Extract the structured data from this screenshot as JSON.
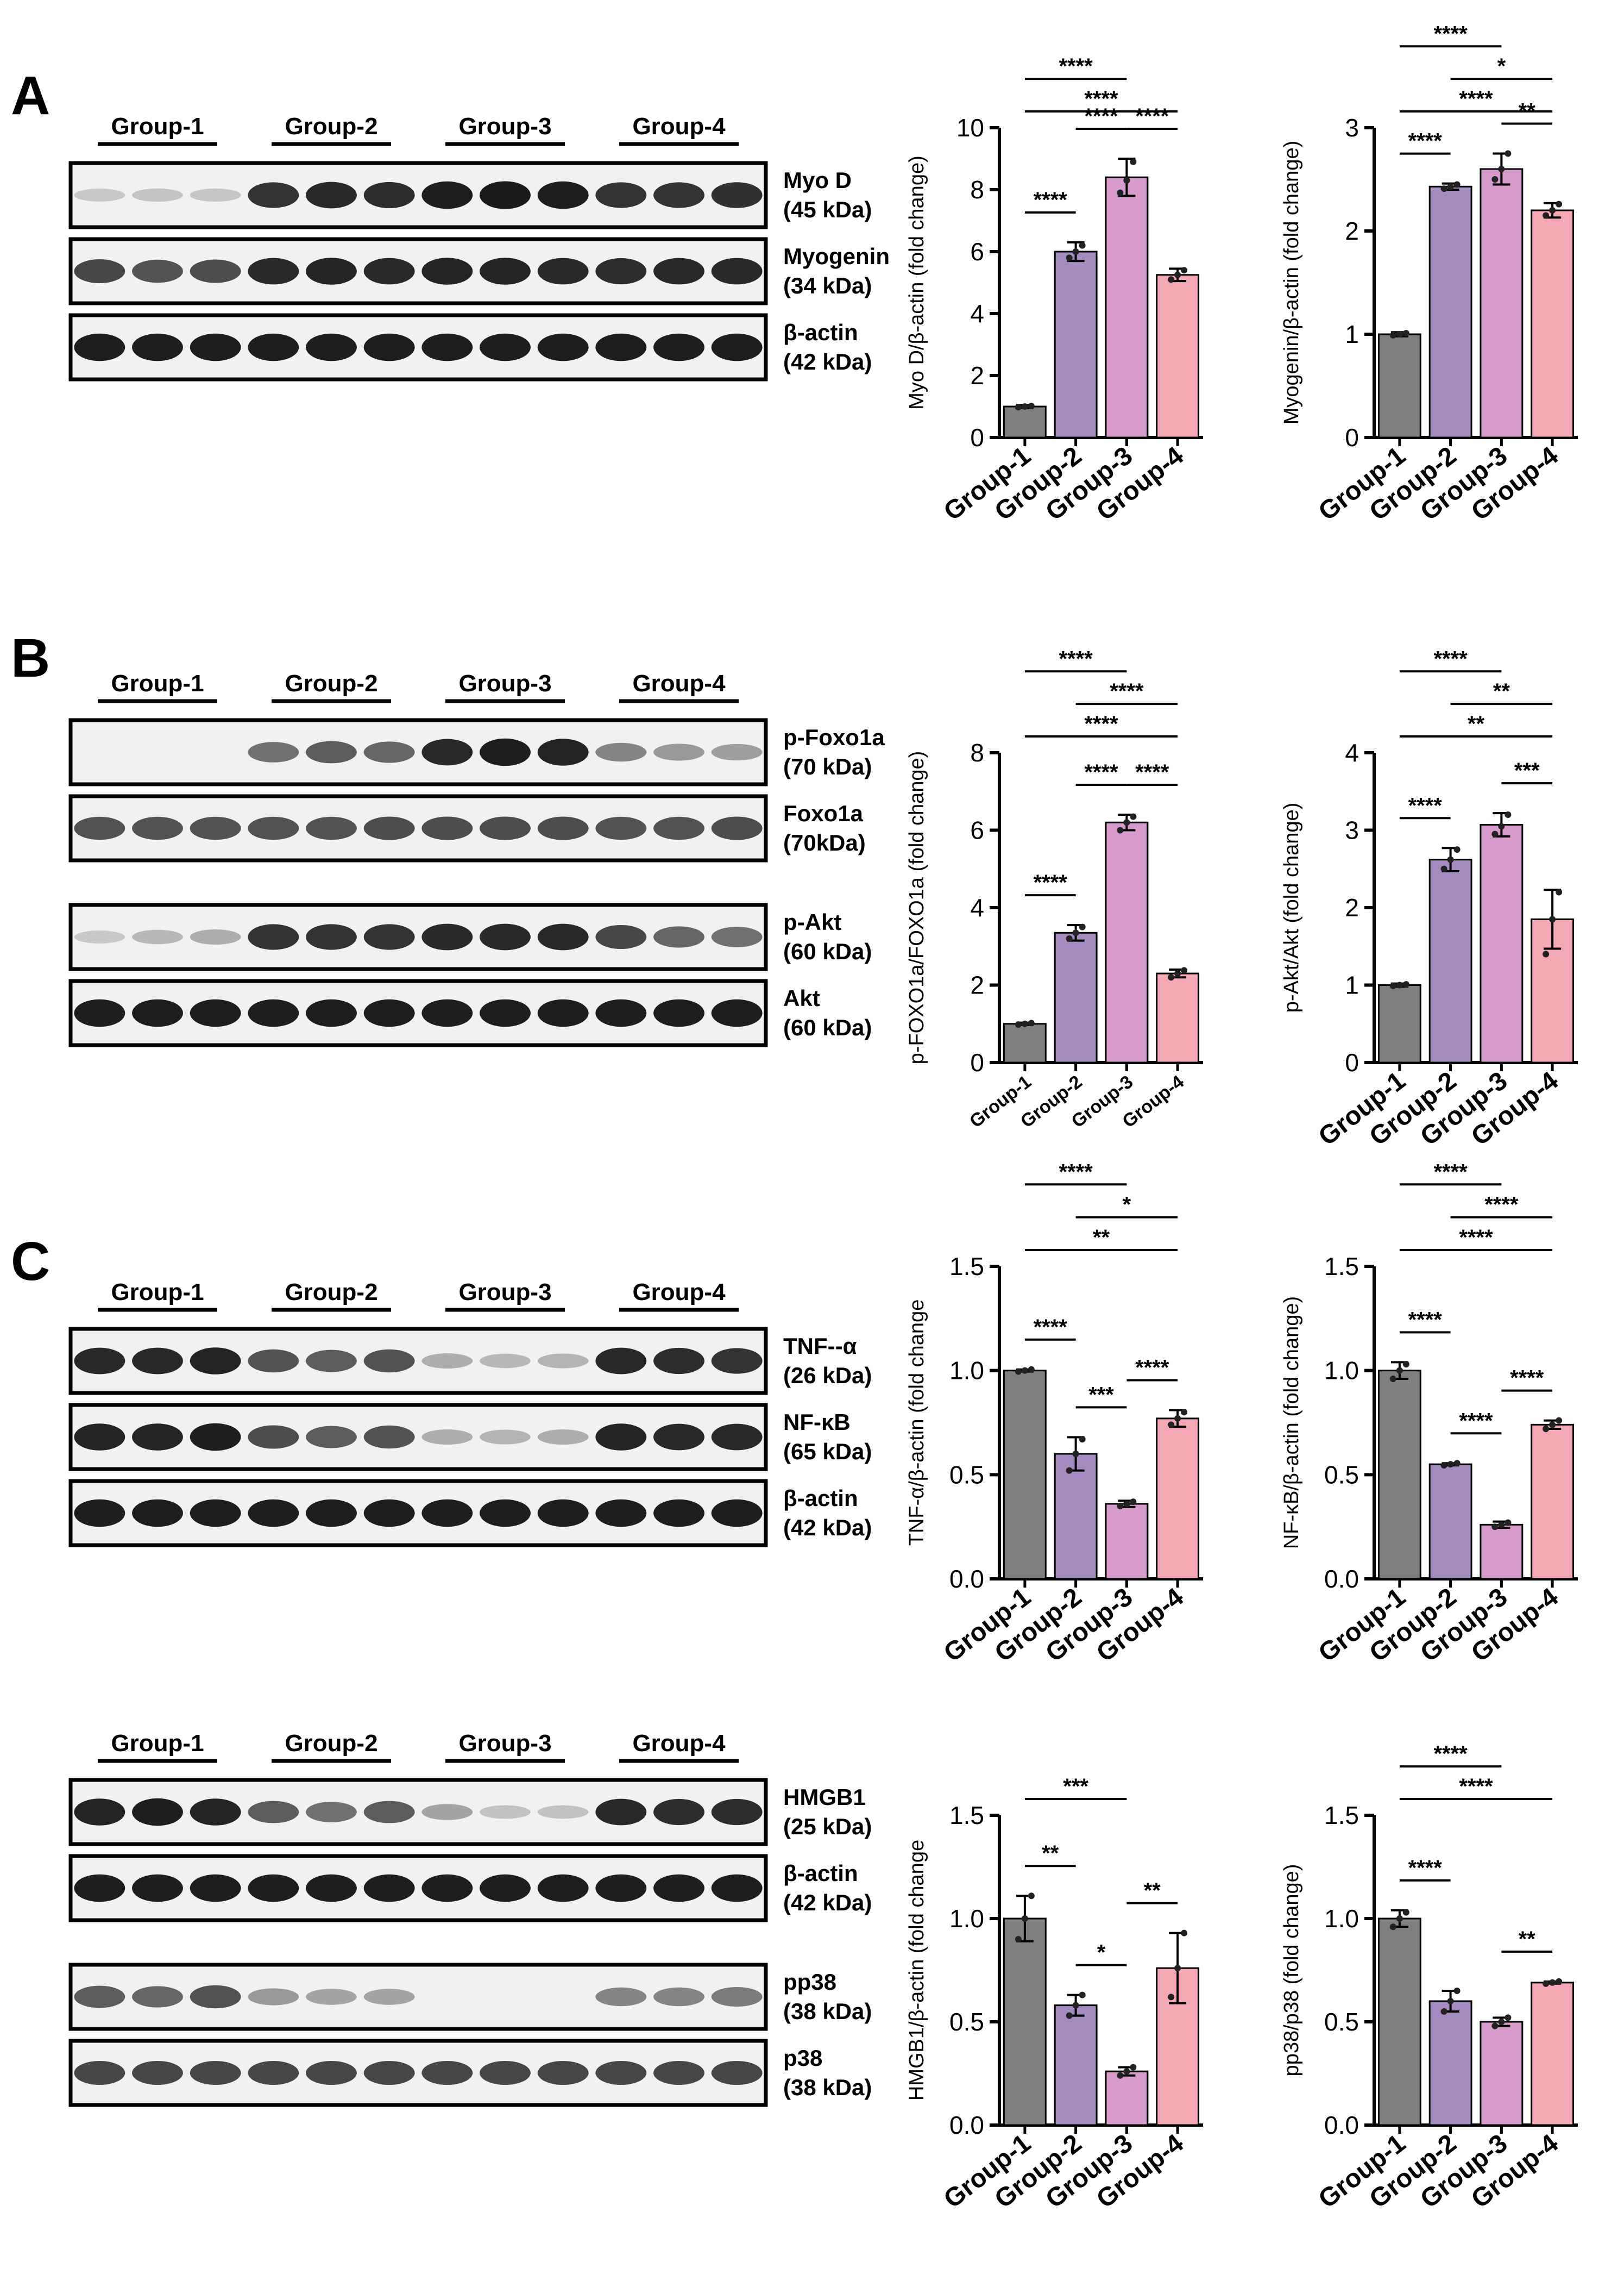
{
  "figure": {
    "group_labels": [
      "Group-1",
      "Group-2",
      "Group-3",
      "Group-4"
    ],
    "colors": {
      "group1": "#7f7f7f",
      "group2": "#a48bc0",
      "group3": "#d89ccc",
      "group4": "#f4a8b4",
      "bar_stroke": "#000000"
    }
  },
  "panels": [
    {
      "letter": "A",
      "blots": [
        {
          "row": [
            {
              "band": "Myo D",
              "size": "(45 kDa)",
              "intensity": [
                0.12,
                0.14,
                0.13,
                0.85,
                0.9,
                0.88,
                0.95,
                0.97,
                0.95,
                0.85,
                0.85,
                0.86
              ]
            },
            {
              "band": "Myogenin",
              "size": "(34 kDa)",
              "intensity": [
                0.75,
                0.7,
                0.72,
                0.9,
                0.92,
                0.9,
                0.92,
                0.92,
                0.9,
                0.88,
                0.9,
                0.9
              ]
            },
            {
              "band": "β-actin",
              "size": "(42 kDa)",
              "intensity": [
                0.95,
                0.95,
                0.95,
                0.95,
                0.95,
                0.95,
                0.95,
                0.95,
                0.95,
                0.95,
                0.95,
                0.95
              ]
            }
          ]
        }
      ]
    },
    {
      "letter": "B",
      "blots": [
        {
          "row": [
            {
              "band": "p-Foxo1a",
              "size": "(70 kDa)",
              "intensity": [
                0.0,
                0.0,
                0.0,
                0.55,
                0.65,
                0.6,
                0.9,
                0.95,
                0.92,
                0.45,
                0.35,
                0.32
              ]
            },
            {
              "band": "Foxo1a",
              "size": "(70kDa)",
              "intensity": [
                0.7,
                0.7,
                0.7,
                0.7,
                0.7,
                0.72,
                0.72,
                0.72,
                0.72,
                0.7,
                0.7,
                0.72
              ]
            }
          ]
        },
        {
          "row": [
            {
              "band": "p-Akt",
              "size": "(60 kDa)",
              "intensity": [
                0.12,
                0.2,
                0.25,
                0.85,
                0.85,
                0.85,
                0.9,
                0.9,
                0.9,
                0.75,
                0.6,
                0.55
              ]
            },
            {
              "band": "Akt",
              "size": "(60 kDa)",
              "intensity": [
                0.95,
                0.95,
                0.95,
                0.95,
                0.95,
                0.95,
                0.95,
                0.95,
                0.95,
                0.95,
                0.95,
                0.95
              ]
            }
          ]
        }
      ]
    },
    {
      "letter": "C",
      "blots": [
        {
          "row": [
            {
              "band": "TNF--α",
              "size": "(26 kDa)",
              "intensity": [
                0.9,
                0.9,
                0.92,
                0.7,
                0.65,
                0.7,
                0.25,
                0.2,
                0.22,
                0.9,
                0.88,
                0.85
              ]
            },
            {
              "band": "NF-κB",
              "size": "(65 kDa)",
              "intensity": [
                0.92,
                0.92,
                0.95,
                0.72,
                0.65,
                0.7,
                0.25,
                0.22,
                0.25,
                0.92,
                0.9,
                0.9
              ]
            },
            {
              "band": "β-actin",
              "size": "(42 kDa)",
              "intensity": [
                0.95,
                0.95,
                0.95,
                0.95,
                0.95,
                0.95,
                0.95,
                0.95,
                0.95,
                0.95,
                0.95,
                0.95
              ]
            }
          ]
        }
      ]
    },
    {
      "letter": "",
      "blots": [
        {
          "row": [
            {
              "band": "HMGB1",
              "size": "(25 kDa)",
              "intensity": [
                0.92,
                0.95,
                0.92,
                0.65,
                0.55,
                0.65,
                0.3,
                0.15,
                0.15,
                0.9,
                0.88,
                0.88
              ]
            },
            {
              "band": "β-actin",
              "size": "(42 kDa)",
              "intensity": [
                0.95,
                0.95,
                0.95,
                0.95,
                0.95,
                0.95,
                0.95,
                0.95,
                0.95,
                0.95,
                0.95,
                0.95
              ]
            }
          ]
        },
        {
          "row": [
            {
              "band": "pp38",
              "size": "(38 kDa)",
              "intensity": [
                0.65,
                0.6,
                0.7,
                0.35,
                0.3,
                0.3,
                0.0,
                0.0,
                0.0,
                0.45,
                0.45,
                0.5
              ]
            },
            {
              "band": "p38",
              "size": "(38 kDa)",
              "intensity": [
                0.75,
                0.75,
                0.75,
                0.75,
                0.75,
                0.75,
                0.75,
                0.75,
                0.75,
                0.75,
                0.75,
                0.75
              ]
            }
          ]
        }
      ]
    }
  ],
  "chart_data": [
    {
      "type": "bar",
      "categories": [
        "Group-1",
        "Group-2",
        "Group-3",
        "Group-4"
      ],
      "ylabel": "Myo D/β-actin (fold change)",
      "ylim": [
        0,
        10
      ],
      "yticks": [
        "0",
        "2",
        "4",
        "6",
        "8",
        "10"
      ],
      "values": [
        1.0,
        6.0,
        8.4,
        5.25
      ],
      "errors": [
        0.05,
        0.3,
        0.6,
        0.2
      ],
      "points": [
        [
          0.98,
          1.0,
          1.02
        ],
        [
          5.8,
          6.0,
          6.2
        ],
        [
          7.9,
          8.3,
          8.9
        ],
        [
          5.1,
          5.25,
          5.4
        ]
      ],
      "significance": [
        {
          "from": "Group-1",
          "to": "Group-2",
          "label": "****"
        },
        {
          "from": "Group-3",
          "to": "Group-4",
          "label": "****"
        },
        {
          "from": "Group-2",
          "to": "Group-3",
          "label": "****"
        },
        {
          "from": "Group-1",
          "to": "Group-3",
          "label": "****"
        },
        {
          "from": "Group-1",
          "to": "Group-4",
          "label": "****"
        }
      ]
    },
    {
      "type": "bar",
      "categories": [
        "Group-1",
        "Group-2",
        "Group-3",
        "Group-4"
      ],
      "ylabel": "Myogenin/β-actin (fold change)",
      "ylim": [
        0,
        3
      ],
      "yticks": [
        "0",
        "1",
        "2",
        "3"
      ],
      "values": [
        1.0,
        2.43,
        2.6,
        2.2
      ],
      "errors": [
        0.02,
        0.03,
        0.15,
        0.07
      ],
      "points": [
        [
          0.99,
          1.0,
          1.01
        ],
        [
          2.41,
          2.43,
          2.45
        ],
        [
          2.5,
          2.6,
          2.75
        ],
        [
          2.15,
          2.2,
          2.26
        ]
      ],
      "significance": [
        {
          "from": "Group-1",
          "to": "Group-2",
          "label": "****"
        },
        {
          "from": "Group-3",
          "to": "Group-4",
          "label": "**"
        },
        {
          "from": "Group-1",
          "to": "Group-3",
          "label": "****"
        },
        {
          "from": "Group-2",
          "to": "Group-4",
          "label": "*"
        },
        {
          "from": "Group-1",
          "to": "Group-4",
          "label": "****"
        }
      ]
    },
    {
      "type": "bar",
      "categories": [
        "Group-1",
        "Group-2",
        "Group-3",
        "Group-4"
      ],
      "ylabel": "p-FOXO1a/FOXO1a (fold change)",
      "ylim": [
        0,
        8
      ],
      "yticks": [
        "0",
        "2",
        "4",
        "6",
        "8"
      ],
      "small_xticks": true,
      "values": [
        1.0,
        3.35,
        6.2,
        2.3
      ],
      "errors": [
        0.03,
        0.2,
        0.2,
        0.1
      ],
      "points": [
        [
          0.98,
          1.0,
          1.02
        ],
        [
          3.2,
          3.35,
          3.5
        ],
        [
          6.0,
          6.2,
          6.35
        ],
        [
          2.2,
          2.3,
          2.38
        ]
      ],
      "significance": [
        {
          "from": "Group-1",
          "to": "Group-2",
          "label": "****"
        },
        {
          "from": "Group-3",
          "to": "Group-4",
          "label": "****"
        },
        {
          "from": "Group-2",
          "to": "Group-3",
          "label": "****"
        },
        {
          "from": "Group-1",
          "to": "Group-3",
          "label": "****"
        },
        {
          "from": "Group-2",
          "to": "Group-4",
          "label": "****"
        },
        {
          "from": "Group-1",
          "to": "Group-4",
          "label": "****"
        }
      ]
    },
    {
      "type": "bar",
      "categories": [
        "Group-1",
        "Group-2",
        "Group-3",
        "Group-4"
      ],
      "ylabel": "p-Akt/Akt (fold change)",
      "ylim": [
        0,
        4
      ],
      "yticks": [
        "0",
        "1",
        "2",
        "3",
        "4"
      ],
      "values": [
        1.0,
        2.62,
        3.07,
        1.85
      ],
      "errors": [
        0.02,
        0.15,
        0.15,
        0.38
      ],
      "points": [
        [
          0.99,
          1.0,
          1.01
        ],
        [
          2.5,
          2.62,
          2.75
        ],
        [
          2.95,
          3.05,
          3.2
        ],
        [
          1.4,
          1.85,
          2.2
        ]
      ],
      "significance": [
        {
          "from": "Group-1",
          "to": "Group-2",
          "label": "****"
        },
        {
          "from": "Group-3",
          "to": "Group-4",
          "label": "***"
        },
        {
          "from": "Group-1",
          "to": "Group-3",
          "label": "****"
        },
        {
          "from": "Group-2",
          "to": "Group-4",
          "label": "**"
        },
        {
          "from": "Group-1",
          "to": "Group-4",
          "label": "**"
        }
      ]
    },
    {
      "type": "bar",
      "categories": [
        "Group-1",
        "Group-2",
        "Group-3",
        "Group-4"
      ],
      "ylabel": "TNF-α/β-actin (fold change",
      "ylim": [
        0,
        1.5
      ],
      "yticks": [
        "0.0",
        "0.5",
        "1.0",
        "1.5"
      ],
      "values": [
        1.0,
        0.6,
        0.36,
        0.77
      ],
      "errors": [
        0.005,
        0.08,
        0.015,
        0.04
      ],
      "points": [
        [
          0.995,
          1.0,
          1.005
        ],
        [
          0.52,
          0.6,
          0.67
        ],
        [
          0.35,
          0.36,
          0.37
        ],
        [
          0.74,
          0.77,
          0.8
        ]
      ],
      "significance": [
        {
          "from": "Group-1",
          "to": "Group-2",
          "label": "****"
        },
        {
          "from": "Group-2",
          "to": "Group-3",
          "label": "***"
        },
        {
          "from": "Group-3",
          "to": "Group-4",
          "label": "****"
        },
        {
          "from": "Group-1",
          "to": "Group-3",
          "label": "****"
        },
        {
          "from": "Group-2",
          "to": "Group-4",
          "label": "*"
        },
        {
          "from": "Group-1",
          "to": "Group-4",
          "label": "**"
        }
      ]
    },
    {
      "type": "bar",
      "categories": [
        "Group-1",
        "Group-2",
        "Group-3",
        "Group-4"
      ],
      "ylabel": "NF-κB/β-actin (fold change)",
      "ylim": [
        0,
        1.5
      ],
      "yticks": [
        "0.0",
        "0.5",
        "1.0",
        "1.5"
      ],
      "values": [
        1.0,
        0.55,
        0.26,
        0.74
      ],
      "errors": [
        0.04,
        0.005,
        0.015,
        0.02
      ],
      "points": [
        [
          0.96,
          1.0,
          1.03
        ],
        [
          0.545,
          0.55,
          0.555
        ],
        [
          0.25,
          0.26,
          0.27
        ],
        [
          0.72,
          0.74,
          0.76
        ]
      ],
      "significance": [
        {
          "from": "Group-1",
          "to": "Group-2",
          "label": "****"
        },
        {
          "from": "Group-3",
          "to": "Group-4",
          "label": "****"
        },
        {
          "from": "Group-2",
          "to": "Group-3",
          "label": "****"
        },
        {
          "from": "Group-1",
          "to": "Group-3",
          "label": "****"
        },
        {
          "from": "Group-2",
          "to": "Group-4",
          "label": "****"
        },
        {
          "from": "Group-1",
          "to": "Group-4",
          "label": "****"
        }
      ]
    },
    {
      "type": "bar",
      "categories": [
        "Group-1",
        "Group-2",
        "Group-3",
        "Group-4"
      ],
      "ylabel": "HMGB1/β-actin (fold change",
      "ylim": [
        0,
        1.5
      ],
      "yticks": [
        "0.0",
        "0.5",
        "1.0",
        "1.5"
      ],
      "values": [
        1.0,
        0.58,
        0.26,
        0.76
      ],
      "errors": [
        0.11,
        0.05,
        0.02,
        0.17
      ],
      "points": [
        [
          0.9,
          1.0,
          1.11
        ],
        [
          0.53,
          0.58,
          0.63
        ],
        [
          0.24,
          0.26,
          0.28
        ],
        [
          0.62,
          0.76,
          0.93
        ]
      ],
      "significance": [
        {
          "from": "Group-1",
          "to": "Group-2",
          "label": "**"
        },
        {
          "from": "Group-2",
          "to": "Group-3",
          "label": "*"
        },
        {
          "from": "Group-3",
          "to": "Group-4",
          "label": "**"
        },
        {
          "from": "Group-1",
          "to": "Group-3",
          "label": "***"
        }
      ]
    },
    {
      "type": "bar",
      "categories": [
        "Group-1",
        "Group-2",
        "Group-3",
        "Group-4"
      ],
      "ylabel": "pp38/p38 (fold change)",
      "ylim": [
        0,
        1.5
      ],
      "yticks": [
        "0.0",
        "0.5",
        "1.0",
        "1.5"
      ],
      "values": [
        1.0,
        0.6,
        0.5,
        0.69
      ],
      "errors": [
        0.04,
        0.05,
        0.02,
        0.005
      ],
      "points": [
        [
          0.96,
          1.0,
          1.03
        ],
        [
          0.55,
          0.6,
          0.65
        ],
        [
          0.48,
          0.5,
          0.52
        ],
        [
          0.685,
          0.69,
          0.695
        ]
      ],
      "significance": [
        {
          "from": "Group-1",
          "to": "Group-2",
          "label": "****"
        },
        {
          "from": "Group-3",
          "to": "Group-4",
          "label": "**"
        },
        {
          "from": "Group-1",
          "to": "Group-3",
          "label": "****"
        },
        {
          "from": "Group-1",
          "to": "Group-4",
          "label": "****"
        }
      ]
    }
  ]
}
